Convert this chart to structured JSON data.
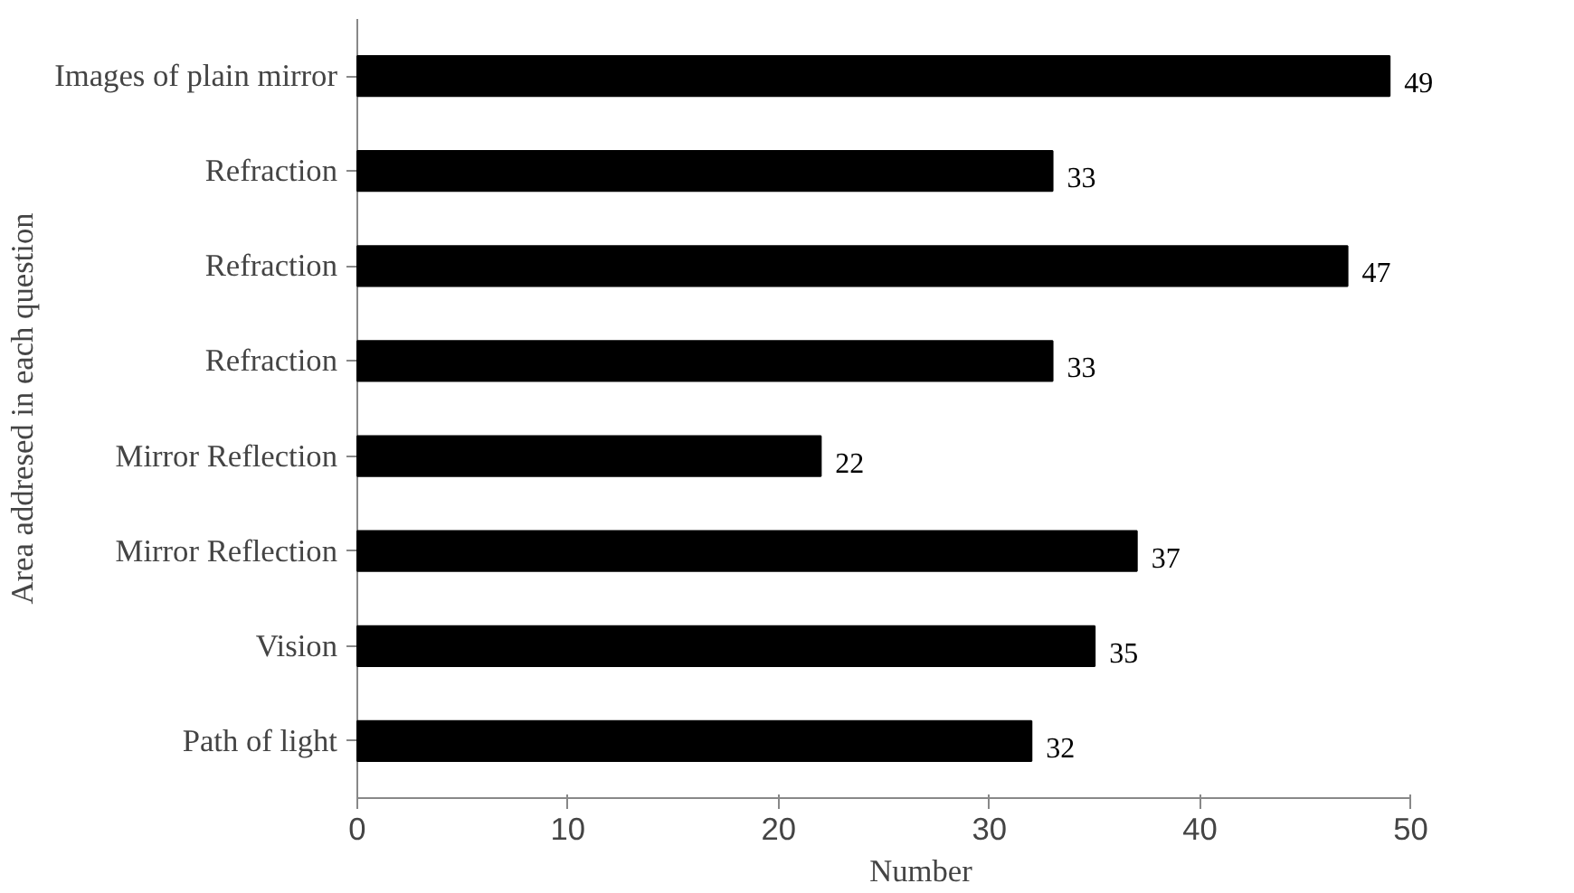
{
  "chart_data": {
    "type": "bar",
    "orientation": "horizontal",
    "categories": [
      "Images of plain mirror",
      "Refraction",
      "Refraction",
      "Refraction",
      "Mirror Reflection",
      "Mirror Reflection",
      "Vision",
      "Path of light"
    ],
    "values": [
      49,
      33,
      47,
      33,
      22,
      37,
      35,
      32
    ],
    "color": "#000000",
    "xlim": [
      0,
      50
    ],
    "xticks": [
      0,
      10,
      20,
      30,
      40,
      50
    ],
    "xlabel": "Number",
    "ylabel": "Area addresed in each question",
    "data_labels": true,
    "grid": false
  }
}
